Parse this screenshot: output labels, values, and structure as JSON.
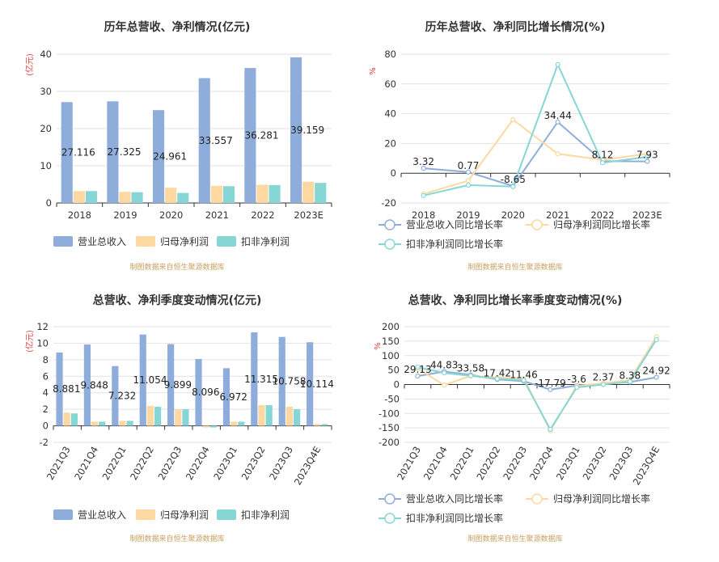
{
  "chart_data": [
    {
      "type": "bar",
      "title": "历年总营收、净利情况(亿元)",
      "ylabel": "(亿元)",
      "ylim": [
        0,
        40
      ],
      "yticks": [
        0,
        10,
        20,
        30,
        40
      ],
      "categories": [
        "2018",
        "2019",
        "2020",
        "2021",
        "2022",
        "2023E"
      ],
      "series": [
        {
          "name": "营业总收入",
          "values": [
            27.116,
            27.325,
            24.961,
            33.557,
            36.281,
            39.159
          ],
          "color": "#8fadda"
        },
        {
          "name": "归母净利润",
          "values": [
            3.2,
            3.0,
            4.1,
            4.6,
            4.9,
            5.7
          ],
          "color": "#fdd8a0"
        },
        {
          "name": "扣非净利润",
          "values": [
            3.2,
            2.9,
            2.7,
            4.5,
            4.8,
            5.4
          ],
          "color": "#86d6d6"
        }
      ],
      "data_labels": [
        "27.116",
        "27.325",
        "24.961",
        "33.557",
        "36.281",
        "39.159"
      ],
      "source": "制图数据来自恒生聚源数据库"
    },
    {
      "type": "line",
      "title": "历年总营收、净利同比增长情况(%)",
      "ylabel": "%",
      "ylim": [
        -20,
        80
      ],
      "yticks": [
        -20,
        0,
        20,
        40,
        60,
        80
      ],
      "categories": [
        "2018",
        "2019",
        "2020",
        "2021",
        "2022",
        "2023E"
      ],
      "series": [
        {
          "name": "营业总收入同比增长率",
          "values": [
            3.32,
            0.77,
            -8.65,
            34.44,
            8.12,
            7.93
          ],
          "color": "#8fadda"
        },
        {
          "name": "归母净利润同比增长率",
          "values": [
            -14,
            -5,
            36,
            13,
            9,
            13
          ],
          "color": "#fdd8a0"
        },
        {
          "name": "扣非净利润同比增长率",
          "values": [
            -15,
            -8,
            -9,
            73,
            7,
            11
          ],
          "color": "#86d6d6"
        }
      ],
      "data_labels": [
        "3.32",
        "0.77",
        "-8.65",
        "34.44",
        "8.12",
        "7.93"
      ],
      "source": "制图数据来自恒生聚源数据库"
    },
    {
      "type": "bar",
      "title": "总营收、净利季度变动情况(亿元)",
      "ylabel": "(亿元)",
      "ylim": [
        -2,
        12
      ],
      "yticks": [
        -2,
        0,
        2,
        4,
        6,
        8,
        10,
        12
      ],
      "categories": [
        "2021Q3",
        "2021Q4",
        "2022Q1",
        "2022Q2",
        "2022Q3",
        "2022Q4",
        "2023Q1",
        "2023Q2",
        "2023Q3",
        "2023Q4E"
      ],
      "series": [
        {
          "name": "营业总收入",
          "values": [
            8.881,
            9.848,
            7.232,
            11.054,
            9.899,
            8.096,
            6.972,
            11.315,
            10.758,
            10.114
          ],
          "color": "#8fadda"
        },
        {
          "name": "归母净利润",
          "values": [
            1.6,
            0.5,
            0.6,
            2.4,
            2.0,
            -0.2,
            0.5,
            2.5,
            2.3,
            0.2
          ],
          "color": "#fdd8a0"
        },
        {
          "name": "扣非净利润",
          "values": [
            1.5,
            0.5,
            0.6,
            2.3,
            2.0,
            -0.2,
            0.5,
            2.5,
            2.0,
            0.2
          ],
          "color": "#86d6d6"
        }
      ],
      "data_labels": [
        "8.881",
        "9.848",
        "7.232",
        "11.054",
        "9.899",
        "8.096",
        "6.972",
        "11.315",
        "10.758",
        "10.114"
      ],
      "source": "制图数据来自恒生聚源数据库"
    },
    {
      "type": "line",
      "title": "总营收、净利同比增长率季度变动情况(%)",
      "ylabel": "%",
      "ylim": [
        -200,
        200
      ],
      "yticks": [
        -200,
        -150,
        -100,
        -50,
        0,
        50,
        100,
        150,
        200
      ],
      "categories": [
        "2021Q3",
        "2021Q4",
        "2022Q1",
        "2022Q2",
        "2022Q3",
        "2022Q4",
        "2023Q1",
        "2023Q2",
        "2023Q3",
        "2023Q4E"
      ],
      "series": [
        {
          "name": "营业总收入同比增长率",
          "values": [
            29.13,
            44.83,
            33.58,
            17.42,
            11.46,
            -17.79,
            -3.6,
            2.37,
            8.38,
            24.92
          ],
          "color": "#8fadda"
        },
        {
          "name": "归母净利润同比增长率",
          "values": [
            55,
            -2,
            30,
            25,
            20,
            -160,
            -5,
            5,
            15,
            165
          ],
          "color": "#fdd8a0"
        },
        {
          "name": "扣非净利润同比增长率",
          "values": [
            60,
            40,
            30,
            20,
            15,
            -155,
            -10,
            0,
            10,
            155
          ],
          "color": "#86d6d6"
        }
      ],
      "data_labels": [
        "29.13",
        "44.83",
        "33.58",
        "17.42",
        "11.46",
        "-17.79",
        "-3.6",
        "2.37",
        "8.38",
        "24.92"
      ],
      "source": "制图数据来自恒生聚源数据库"
    }
  ]
}
